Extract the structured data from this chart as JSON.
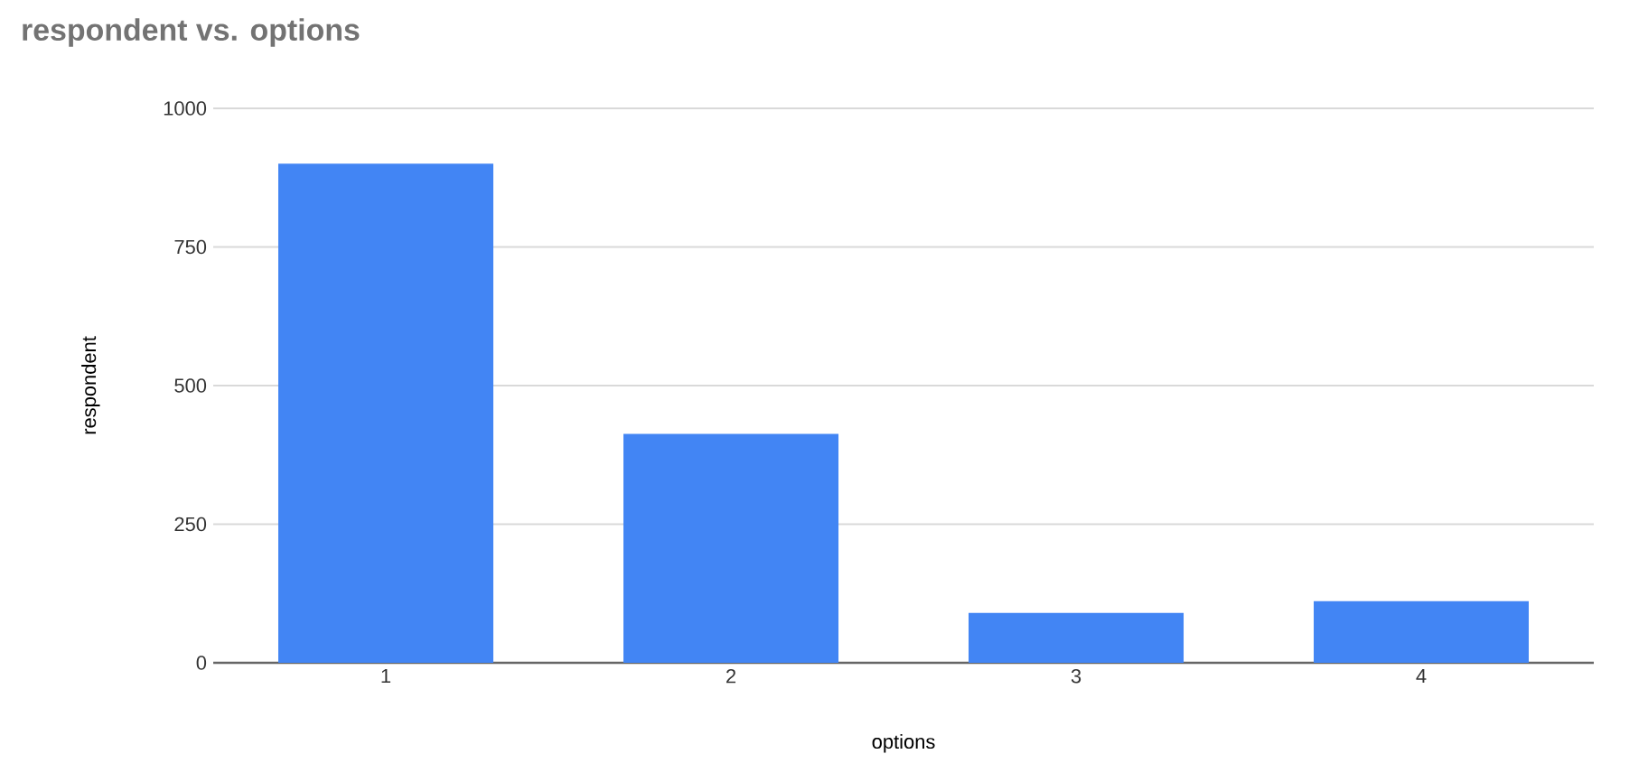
{
  "chart_data": {
    "type": "bar",
    "title": "respondent  vs. options",
    "xlabel": "options",
    "ylabel": "respondent",
    "categories": [
      "1",
      "2",
      "3",
      "4"
    ],
    "values": [
      900,
      413,
      90,
      111
    ],
    "color": "#4285f4",
    "ylim": [
      0,
      1000
    ],
    "yticks": [
      0,
      250,
      500,
      750,
      1000
    ],
    "grid": "y"
  }
}
